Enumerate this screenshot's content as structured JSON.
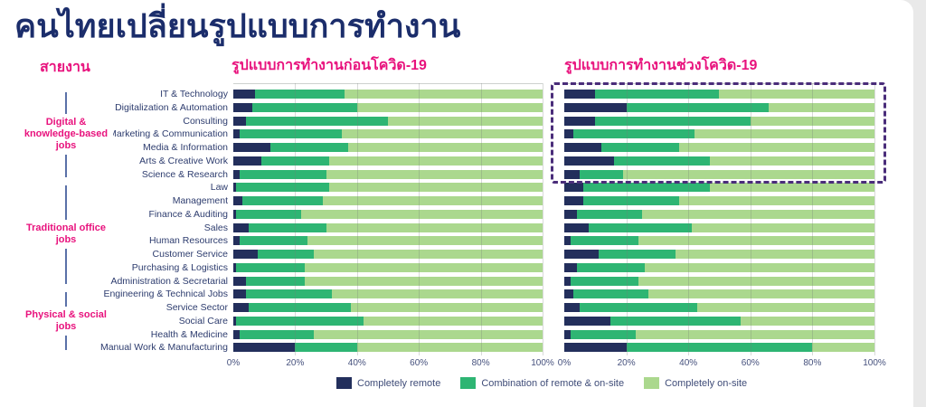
{
  "page": {
    "title": "คนไทยเปลี่ยนรูปแบบการทำงาน",
    "column_header": "สายงาน"
  },
  "chart_data": {
    "type": "bar",
    "orientation": "horizontal",
    "stacked": true,
    "unit": "percent",
    "xlim": [
      0,
      100
    ],
    "x_ticks": [
      "0%",
      "20%",
      "40%",
      "60%",
      "80%",
      "100%"
    ],
    "grid": "vertical",
    "legend_position": "bottom",
    "legend": [
      "Completely remote",
      "Combination of remote & on-site",
      "Completely on-site"
    ],
    "colors": {
      "remote": "#232f5c",
      "combination": "#2eb573",
      "onsite": "#abd88e",
      "accent_pink": "#e8127d",
      "title_navy": "#1b2d6b",
      "highlight_border": "#4a2d7a"
    },
    "categories": [
      "IT & Technology",
      "Digitalization & Automation",
      "Consulting",
      "Marketing & Communication",
      "Media & Information",
      "Arts & Creative Work",
      "Science & Research",
      "Law",
      "Management",
      "Finance & Auditing",
      "Sales",
      "Human Resources",
      "Customer Service",
      "Purchasing & Logistics",
      "Administration & Secretarial",
      "Engineering & Technical Jobs",
      "Service Sector",
      "Social Care",
      "Health & Medicine",
      "Manual Work & Manufacturing"
    ],
    "groups": [
      {
        "label": "Digital & knowledge-based jobs",
        "start_row": 0,
        "end_row": 6
      },
      {
        "label": "Traditional office jobs",
        "start_row": 7,
        "end_row": 14
      },
      {
        "label": "Physical & social jobs",
        "start_row": 15,
        "end_row": 19
      }
    ],
    "charts": [
      {
        "title": "รูปแบบการทำงานก่อนโควิด-19",
        "series_order": [
          "Completely remote",
          "Combination of remote & on-site",
          "Completely on-site"
        ],
        "values": [
          [
            7,
            29,
            64
          ],
          [
            6,
            34,
            60
          ],
          [
            4,
            46,
            50
          ],
          [
            2,
            33,
            65
          ],
          [
            12,
            25,
            63
          ],
          [
            9,
            22,
            69
          ],
          [
            2,
            28,
            70
          ],
          [
            1,
            30,
            69
          ],
          [
            3,
            26,
            71
          ],
          [
            1,
            21,
            78
          ],
          [
            5,
            25,
            70
          ],
          [
            2,
            22,
            76
          ],
          [
            8,
            18,
            74
          ],
          [
            1,
            22,
            77
          ],
          [
            4,
            19,
            77
          ],
          [
            4,
            28,
            68
          ],
          [
            5,
            33,
            62
          ],
          [
            1,
            41,
            58
          ],
          [
            2,
            24,
            74
          ],
          [
            20,
            20,
            60
          ]
        ]
      },
      {
        "title": "รูปแบบการทำงานช่วงโควิด-19",
        "series_order": [
          "Completely remote",
          "Combination of remote & on-site",
          "Completely on-site"
        ],
        "highlighted_rows": [
          0,
          6
        ],
        "values": [
          [
            10,
            40,
            50
          ],
          [
            20,
            46,
            34
          ],
          [
            10,
            50,
            40
          ],
          [
            3,
            39,
            58
          ],
          [
            12,
            25,
            63
          ],
          [
            16,
            31,
            53
          ],
          [
            5,
            14,
            81
          ],
          [
            6,
            41,
            53
          ],
          [
            6,
            31,
            63
          ],
          [
            4,
            21,
            75
          ],
          [
            8,
            33,
            59
          ],
          [
            2,
            22,
            76
          ],
          [
            11,
            25,
            64
          ],
          [
            4,
            22,
            74
          ],
          [
            2,
            22,
            76
          ],
          [
            3,
            24,
            73
          ],
          [
            5,
            38,
            57
          ],
          [
            15,
            42,
            43
          ],
          [
            2,
            21,
            77
          ],
          [
            20,
            60,
            20
          ]
        ]
      }
    ]
  }
}
